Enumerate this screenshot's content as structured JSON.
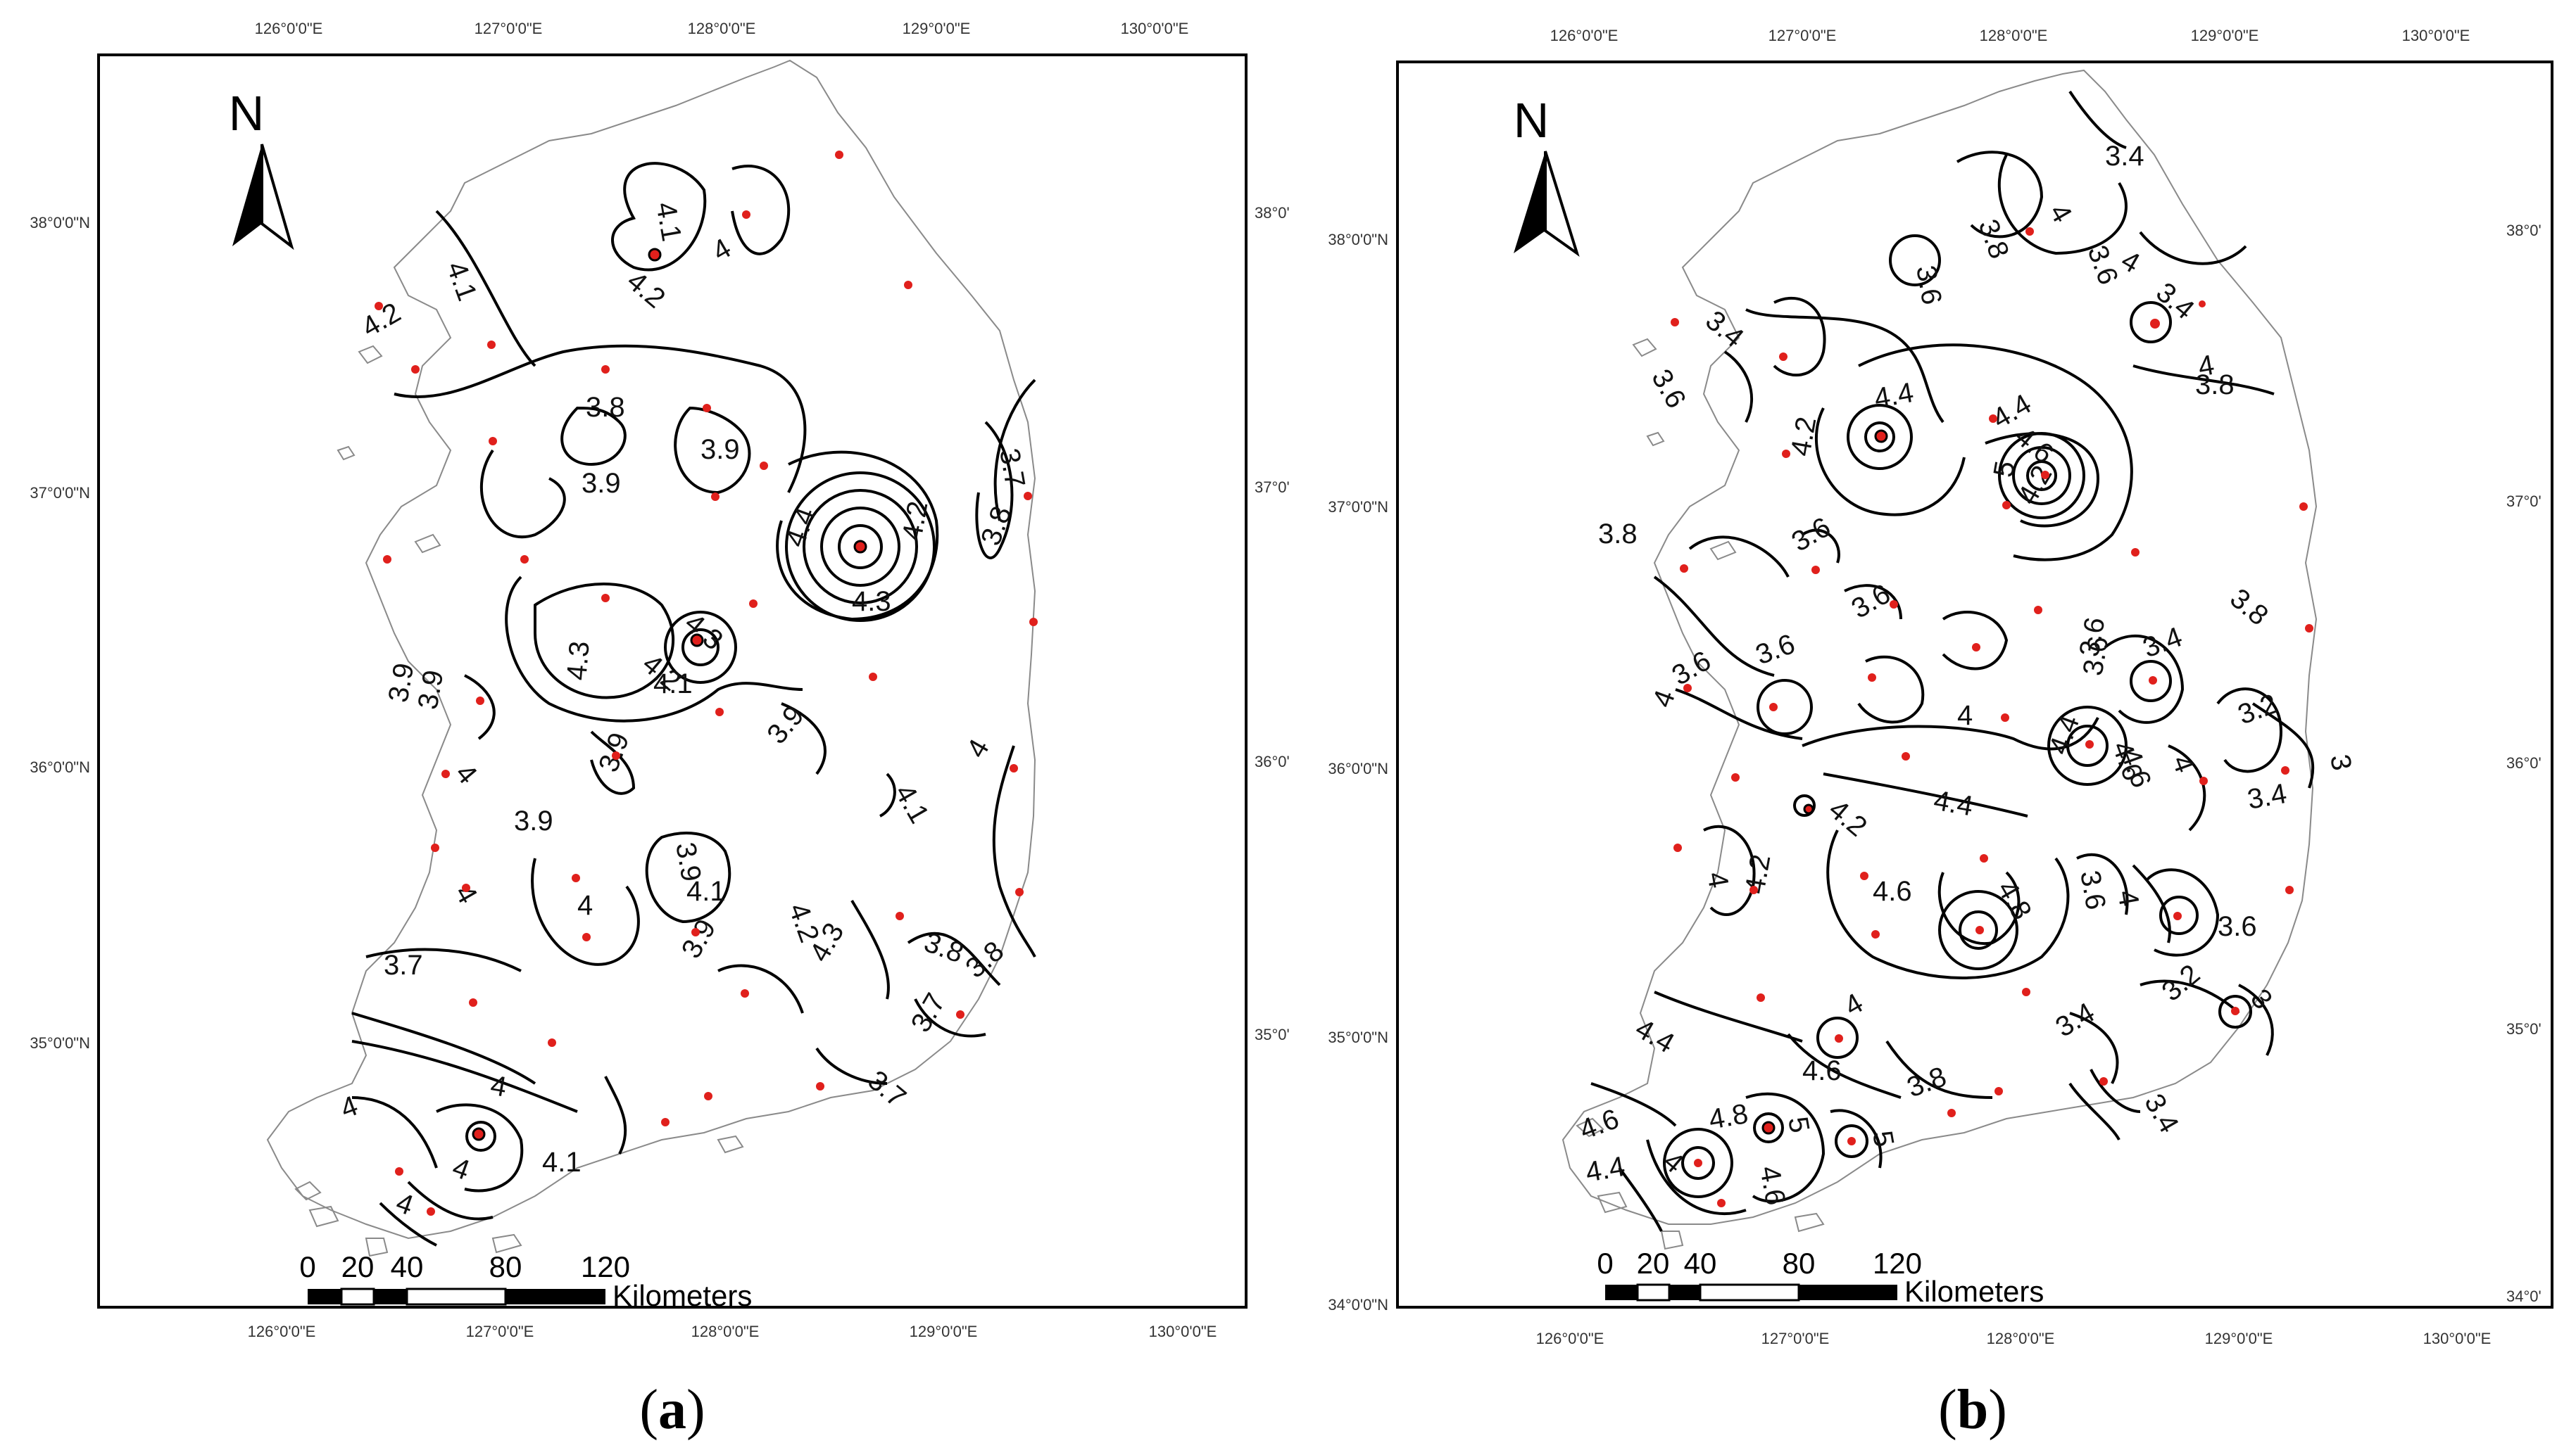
{
  "panels": [
    {
      "id": "a",
      "caption_open": "(",
      "caption_letter": "a",
      "caption_close": ")",
      "lon_ticks": [
        "126°0'0\"E",
        "127°0'0\"E",
        "128°0'0\"E",
        "129°0'0\"E",
        "130°0'0\"E"
      ],
      "lat_ticks_left": [
        "38°0'0\"N",
        "37°0'0\"N",
        "36°0'0\"N",
        "35°0'0\"N"
      ],
      "lat_ticks_right": [
        "38°0'",
        "37°0'",
        "36°0'",
        "35°0'"
      ],
      "north_label": "N",
      "scale_ticks": [
        "0",
        "20",
        "40",
        "80",
        "120"
      ],
      "scale_unit": "Kilometers",
      "contour_labels": [
        "4.1",
        "4.2",
        "4",
        "4.1",
        "4.2",
        "3.8",
        "3.9",
        "3.9",
        "4.4",
        "4.2",
        "4.3",
        "3.7",
        "3.8",
        "4.3",
        "4.3",
        "4.2",
        "4.1",
        "3.9",
        "3.9",
        "3.9",
        "3.9",
        "4",
        "4.1",
        "4",
        "3.9",
        "4",
        "3.9",
        "3.9",
        "4",
        "4.1",
        "4.2",
        "4.3",
        "3.8",
        "3.8",
        "3.7",
        "3.7",
        "3.7",
        "4",
        "4",
        "4",
        "4.1",
        "4"
      ]
    },
    {
      "id": "b",
      "caption_open": "(",
      "caption_letter": "b",
      "caption_close": ")",
      "lon_ticks": [
        "126°0'0\"E",
        "127°0'0\"E",
        "128°0'0\"E",
        "129°0'0\"E",
        "130°0'0\"E"
      ],
      "lat_ticks_left": [
        "38°0'0\"N",
        "37°0'0\"N",
        "36°0'0\"N",
        "35°0'0\"N",
        "34°0'0\"N"
      ],
      "lat_ticks_right": [
        "38°0'",
        "37°0'",
        "36°0'",
        "35°0'",
        "34°0'"
      ],
      "north_label": "N",
      "scale_ticks": [
        "0",
        "20",
        "40",
        "80",
        "120"
      ],
      "scale_unit": "Kilometers",
      "contour_labels": [
        "3.4",
        "3.8",
        "3.6",
        "4",
        "3.6",
        "3.4",
        "4",
        "3.8",
        "4",
        "3.4",
        "3.6",
        "4.4",
        "4.2",
        "4.4",
        "4.6",
        "5",
        "4.2",
        "3.8",
        "3.6",
        "3.6",
        "3.6",
        "3.6",
        "3.6",
        "3.8",
        "4",
        "4",
        "4.2",
        "4.4",
        "4.4",
        "4.6",
        "3.4",
        "3.6",
        "4.6",
        "4",
        "3.2",
        "3.4",
        "3",
        "4",
        "4.2",
        "4.6",
        "4.8",
        "3.6",
        "4",
        "3.6",
        "3.2",
        "3",
        "3.4",
        "3.4",
        "4.4",
        "4",
        "4.6",
        "3.8",
        "4.6",
        "4.8",
        "5",
        "4.6",
        "5",
        "4",
        "4.4"
      ]
    }
  ],
  "colors": {
    "station": "#e0201c",
    "contour": "#000000",
    "coast": "#8a8a8a"
  }
}
